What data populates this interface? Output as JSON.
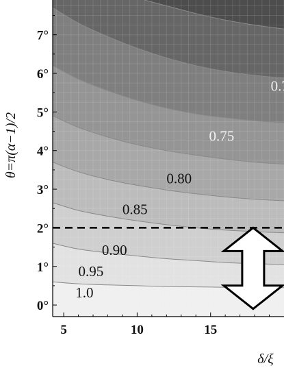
{
  "chart_data": {
    "type": "contour",
    "title": "",
    "xlabel": "δ/ξ",
    "ylabel": "θ=π(α−1)/2",
    "xlim": [
      4.25,
      20.0
    ],
    "ylim": [
      -0.3,
      7.9
    ],
    "x_ticks": [
      5,
      10,
      15
    ],
    "x_tick_labels": [
      "5",
      "10",
      "15"
    ],
    "y_ticks": [
      0,
      1,
      2,
      3,
      4,
      5,
      6,
      7
    ],
    "y_tick_labels": [
      "0°",
      "1°",
      "2°",
      "3°",
      "4°",
      "5°",
      "6°",
      "7°"
    ],
    "grid": true,
    "colormap": "grayscale (lighter = higher value)",
    "contour_levels": [
      {
        "level": "1.0",
        "label": "1.0",
        "label_at": [
          5.8,
          0.2
        ],
        "label_color": "#111111",
        "fill": "#f0f0f0",
        "boundary": [
          [
            4.25,
            0.6
          ],
          [
            6,
            0.55
          ],
          [
            8,
            0.52
          ],
          [
            10,
            0.5
          ],
          [
            12,
            0.48
          ],
          [
            14,
            0.47
          ],
          [
            16,
            0.46
          ],
          [
            18,
            0.45
          ],
          [
            20,
            0.45
          ]
        ]
      },
      {
        "level": "0.95",
        "label": "0.95",
        "label_at": [
          6.0,
          0.75
        ],
        "label_color": "#111111",
        "fill": "#e2e2e2",
        "boundary": [
          [
            4.25,
            1.6
          ],
          [
            6,
            1.45
          ],
          [
            8,
            1.35
          ],
          [
            10,
            1.27
          ],
          [
            12,
            1.2
          ],
          [
            14,
            1.15
          ],
          [
            16,
            1.1
          ],
          [
            18,
            1.07
          ],
          [
            20,
            1.05
          ]
        ]
      },
      {
        "level": "0.90",
        "label": "0.90",
        "label_at": [
          7.6,
          1.3
        ],
        "label_color": "#111111",
        "fill": "#cfcfcf",
        "boundary": [
          [
            4.25,
            2.65
          ],
          [
            6,
            2.45
          ],
          [
            8,
            2.3
          ],
          [
            10,
            2.18
          ],
          [
            12,
            2.08
          ],
          [
            14,
            2.0
          ],
          [
            16,
            1.94
          ],
          [
            18,
            1.9
          ],
          [
            20,
            1.87
          ]
        ]
      },
      {
        "level": "0.85",
        "label": "0.85",
        "label_at": [
          9.0,
          2.35
        ],
        "label_color": "#111111",
        "fill": "#bcbcbc",
        "boundary": [
          [
            4.25,
            3.7
          ],
          [
            6,
            3.45
          ],
          [
            8,
            3.25
          ],
          [
            10,
            3.1
          ],
          [
            12,
            2.98
          ],
          [
            14,
            2.88
          ],
          [
            16,
            2.8
          ],
          [
            18,
            2.74
          ],
          [
            20,
            2.7
          ]
        ]
      },
      {
        "level": "0.80",
        "label": "0.80",
        "label_at": [
          12.0,
          3.15
        ],
        "label_color": "#111111",
        "fill": "#a8a8a8",
        "boundary": [
          [
            4.25,
            4.9
          ],
          [
            6,
            4.6
          ],
          [
            8,
            4.35
          ],
          [
            10,
            4.15
          ],
          [
            12,
            4.0
          ],
          [
            14,
            3.88
          ],
          [
            16,
            3.78
          ],
          [
            18,
            3.7
          ],
          [
            20,
            3.65
          ]
        ]
      },
      {
        "level": "0.75",
        "label": "0.75",
        "label_at": [
          14.9,
          4.25
        ],
        "label_color": "#f2f2f2",
        "fill": "#959595",
        "boundary": [
          [
            4.25,
            6.2
          ],
          [
            6,
            5.85
          ],
          [
            8,
            5.55
          ],
          [
            10,
            5.3
          ],
          [
            12,
            5.1
          ],
          [
            14,
            4.95
          ],
          [
            16,
            4.85
          ],
          [
            18,
            4.77
          ],
          [
            20,
            4.72
          ]
        ]
      },
      {
        "level": "0.7",
        "label": "0.7",
        "label_at": [
          19.1,
          5.55
        ],
        "label_color": "#f2f2f2",
        "fill": "#7f7f7f",
        "boundary": [
          [
            4.25,
            7.7
          ],
          [
            6,
            7.3
          ],
          [
            8,
            6.95
          ],
          [
            10,
            6.65
          ],
          [
            12,
            6.4
          ],
          [
            14,
            6.2
          ],
          [
            16,
            6.05
          ],
          [
            18,
            5.95
          ],
          [
            20,
            5.88
          ]
        ]
      },
      {
        "level": "0.65",
        "label": "",
        "label_at": null,
        "label_color": "#f2f2f2",
        "fill": "#666666",
        "boundary": [
          [
            10.5,
            7.9
          ],
          [
            12,
            7.75
          ],
          [
            14,
            7.55
          ],
          [
            16,
            7.38
          ],
          [
            18,
            7.25
          ],
          [
            20,
            7.15
          ]
        ]
      },
      {
        "level": "top",
        "label": "",
        "label_at": null,
        "label_color": "#f2f2f2",
        "fill": "#4d4d4d",
        "boundary": null
      }
    ],
    "threshold_line": {
      "y": 2,
      "style": "dashed",
      "color": "#000000"
    },
    "arrow": {
      "type": "double-headed vertical",
      "x": 17.9,
      "y_from": -0.1,
      "y_to": 2.0,
      "fill": "#ffffff",
      "stroke": "#000000"
    }
  }
}
